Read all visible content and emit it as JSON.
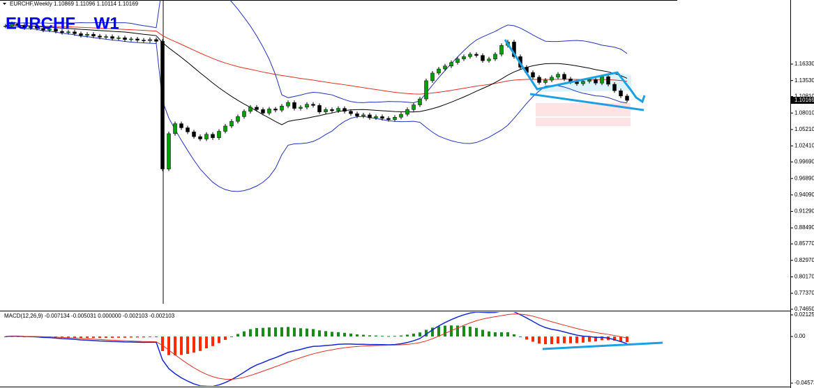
{
  "header": {
    "symbol_line": "EURCHF,Weekly  1.10869 1.11096 1.10114 1.10169",
    "title": "EURCHF    W1"
  },
  "price_axis": [
    {
      "value": 1.1633,
      "label": "1.16330"
    },
    {
      "value": 1.1353,
      "label": "1.13530"
    },
    {
      "value": 1.1081,
      "label": "1.10810"
    },
    {
      "value": 1.0801,
      "label": "1.08010"
    },
    {
      "value": 1.0521,
      "label": "1.05210"
    },
    {
      "value": 1.0241,
      "label": "1.02410"
    },
    {
      "value": 0.9969,
      "label": "0.99690"
    },
    {
      "value": 0.9689,
      "label": "0.96890"
    },
    {
      "value": 0.9409,
      "label": "0.94090"
    },
    {
      "value": 0.9129,
      "label": "0.91290"
    },
    {
      "value": 0.8849,
      "label": "0.88490"
    },
    {
      "value": 0.8577,
      "label": "0.85770"
    },
    {
      "value": 0.8297,
      "label": "0.82970"
    },
    {
      "value": 0.8017,
      "label": "0.80170"
    },
    {
      "value": 0.7737,
      "label": "0.77370"
    },
    {
      "value": 0.7465,
      "label": "0.74650"
    }
  ],
  "current_price": {
    "value": 1.10169,
    "label": "1.10169"
  },
  "closes": [
    1.228,
    1.232,
    1.229,
    1.225,
    1.227,
    1.224,
    1.221,
    1.223,
    1.219,
    1.217,
    1.218,
    1.215,
    1.212,
    1.214,
    1.211,
    1.209,
    1.21,
    1.207,
    1.208,
    1.205,
    1.206,
    1.204,
    1.203,
    1.205,
    1.202,
    0.985,
    1.045,
    1.062,
    1.055,
    1.048,
    1.04,
    1.036,
    1.044,
    1.038,
    1.049,
    1.058,
    1.066,
    1.074,
    1.083,
    1.09,
    1.086,
    1.08,
    1.087,
    1.085,
    1.092,
    1.098,
    1.088,
    1.09,
    1.095,
    1.093,
    1.082,
    1.086,
    1.084,
    1.088,
    1.083,
    1.079,
    1.075,
    1.077,
    1.072,
    1.074,
    1.071,
    1.069,
    1.073,
    1.078,
    1.086,
    1.094,
    1.104,
    1.135,
    1.148,
    1.155,
    1.16,
    1.166,
    1.172,
    1.176,
    1.18,
    1.178,
    1.169,
    1.172,
    1.18,
    1.195,
    1.201,
    1.176,
    1.158,
    1.149,
    1.141,
    1.132,
    1.136,
    1.141,
    1.146,
    1.138,
    1.133,
    1.13,
    1.134,
    1.137,
    1.131,
    1.142,
    1.129,
    1.118,
    1.109,
    1.10169
  ],
  "macd": {
    "label": "MACD(12,26,9) -0.007134 -0.005031 0.000000 -0.002103 -0.002103",
    "axis": [
      {
        "value": 0.02125,
        "label": "0.02125"
      },
      {
        "value": 0,
        "label": "0.00"
      },
      {
        "value": -0.045732,
        "label": "-0.045732"
      }
    ]
  }
}
